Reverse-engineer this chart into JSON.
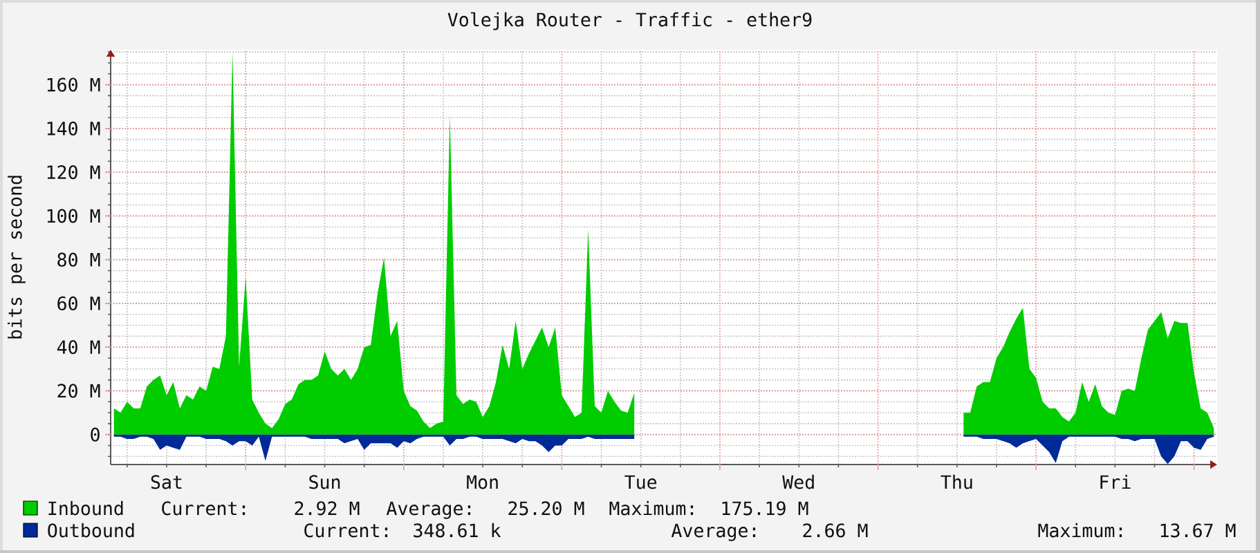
{
  "chart_data": {
    "type": "area",
    "title": "Volejka Router - Traffic - ether9",
    "ylabel": "bits per second",
    "categories": [
      null,
      null,
      null,
      null,
      null,
      null,
      null,
      null,
      "Sat",
      null,
      null,
      null,
      null,
      null,
      null,
      null,
      null,
      null,
      null,
      null,
      null,
      null,
      null,
      null,
      null,
      null,
      null,
      null,
      null,
      null,
      null,
      null,
      "Sun",
      null,
      null,
      null,
      null,
      null,
      null,
      null,
      null,
      null,
      null,
      null,
      null,
      null,
      null,
      null,
      null,
      null,
      null,
      null,
      null,
      null,
      null,
      null,
      "Mon",
      null,
      null,
      null,
      null,
      null,
      null,
      null,
      null,
      null,
      null,
      null,
      null,
      null,
      null,
      null,
      null,
      null,
      null,
      null,
      null,
      null,
      null,
      null,
      "Tue",
      null,
      null,
      null,
      null,
      null,
      null,
      null,
      null,
      null,
      null,
      null,
      null,
      null,
      null,
      null,
      null,
      null,
      null,
      null,
      null,
      null,
      null,
      null,
      "Wed",
      null,
      null,
      null,
      null,
      null,
      null,
      null,
      null,
      null,
      null,
      null,
      null,
      null,
      null,
      null,
      null,
      null,
      null,
      null,
      null,
      null,
      null,
      null,
      "Thu",
      null,
      null,
      null,
      null,
      null,
      null,
      null,
      null,
      null,
      null,
      null,
      null,
      null,
      null,
      null,
      null,
      null,
      null,
      null,
      null,
      null,
      null,
      null,
      "Fri",
      null,
      null,
      null,
      null,
      null,
      null,
      null,
      null,
      null,
      null,
      null,
      null,
      null,
      null,
      null
    ],
    "ylim": [
      -13.7,
      176
    ],
    "yticks": [
      {
        "value": -10,
        "label": null
      },
      {
        "value": -5,
        "label": null
      },
      0,
      {
        "value": 5,
        "label": null
      },
      {
        "value": 10,
        "label": null
      },
      {
        "value": 15,
        "label": null
      },
      {
        "value": 20,
        "label": "20 M"
      },
      {
        "value": 25,
        "label": null
      },
      {
        "value": 30,
        "label": null
      },
      {
        "value": 35,
        "label": null
      },
      {
        "value": 40,
        "label": "40 M"
      },
      {
        "value": 45,
        "label": null
      },
      {
        "value": 50,
        "label": null
      },
      {
        "value": 55,
        "label": null
      },
      {
        "value": 60,
        "label": "60 M"
      },
      {
        "value": 65,
        "label": null
      },
      {
        "value": 70,
        "label": null
      },
      {
        "value": 75,
        "label": null
      },
      {
        "value": 80,
        "label": "80 M"
      },
      {
        "value": 85,
        "label": null
      },
      {
        "value": 90,
        "label": null
      },
      {
        "value": 95,
        "label": null
      },
      {
        "value": 100,
        "label": "100 M"
      },
      {
        "value": 105,
        "label": null
      },
      {
        "value": 110,
        "label": null
      },
      {
        "value": 115,
        "label": null
      },
      {
        "value": 120,
        "label": "120 M"
      },
      {
        "value": 125,
        "label": null
      },
      {
        "value": 130,
        "label": null
      },
      {
        "value": 135,
        "label": null
      },
      {
        "value": 140,
        "label": "140 M"
      },
      {
        "value": 145,
        "label": null
      },
      {
        "value": 150,
        "label": null
      },
      {
        "value": 155,
        "label": null
      },
      {
        "value": 160,
        "label": "160 M"
      },
      {
        "value": 165,
        "label": null
      },
      {
        "value": 170,
        "label": null
      },
      {
        "value": 175,
        "label": null
      }
    ],
    "grid": true,
    "legend": "bottom",
    "series": [
      {
        "name": "Inbound",
        "color": "#00cc00",
        "values": [
          12,
          10,
          15,
          12,
          12,
          22,
          25,
          27,
          18,
          24,
          12,
          18,
          16,
          22,
          20,
          31,
          30,
          45,
          175,
          31,
          72,
          16,
          10,
          5,
          3,
          7,
          14,
          16,
          23,
          25,
          25,
          27,
          38,
          30,
          27,
          30,
          25,
          30,
          40,
          41,
          64,
          81,
          45,
          52,
          20,
          13,
          11,
          6,
          3,
          5,
          6,
          146,
          18,
          14,
          16,
          15,
          8,
          13,
          24,
          41,
          30,
          52,
          30,
          37,
          43,
          49,
          40,
          49,
          18,
          13,
          8,
          10,
          94,
          13,
          10,
          20,
          15,
          11,
          10,
          19,
          null,
          null,
          null,
          null,
          null,
          null,
          null,
          null,
          null,
          null,
          null,
          null,
          null,
          null,
          null,
          null,
          null,
          null,
          null,
          null,
          null,
          null,
          null,
          null,
          null,
          null,
          null,
          null,
          null,
          null,
          null,
          null,
          null,
          null,
          null,
          null,
          null,
          null,
          null,
          null,
          null,
          null,
          null,
          null,
          null,
          null,
          null,
          null,
          null,
          10,
          10,
          22,
          24,
          24,
          35,
          40,
          47,
          53,
          58,
          30,
          26,
          15,
          12,
          12,
          8,
          6,
          10,
          24,
          15,
          23,
          13,
          10,
          9,
          20,
          21,
          20,
          35,
          48,
          52,
          56,
          44,
          52,
          51,
          51,
          28,
          12,
          10,
          3
        ]
      },
      {
        "name": "Outbound",
        "color": "#002a97",
        "values": [
          -1,
          -1,
          -2,
          -2,
          -1,
          -1,
          -2,
          -7,
          -5,
          -6,
          -7,
          -1,
          -1,
          -1,
          -2,
          -2,
          -2,
          -3,
          -5,
          -3,
          -3,
          -5,
          -1,
          -12,
          -1,
          -1,
          -1,
          -1,
          -1,
          -1,
          -2,
          -2,
          -2,
          -2,
          -2,
          -4,
          -3,
          -2,
          -7,
          -4,
          -4,
          -4,
          -4,
          -6,
          -3,
          -4,
          -2,
          -1,
          -1,
          -1,
          -1,
          -5,
          -2,
          -2,
          -1,
          -1,
          -2,
          -2,
          -2,
          -2,
          -3,
          -4,
          -2,
          -3,
          -3,
          -5,
          -8,
          -5,
          -5,
          -2,
          -2,
          -2,
          -1,
          -2,
          -2,
          -2,
          -2,
          -2,
          -2,
          -2,
          null,
          null,
          null,
          null,
          null,
          null,
          null,
          null,
          null,
          null,
          null,
          null,
          null,
          null,
          null,
          null,
          null,
          null,
          null,
          null,
          null,
          null,
          null,
          null,
          null,
          null,
          null,
          null,
          null,
          null,
          null,
          null,
          null,
          null,
          null,
          null,
          null,
          null,
          null,
          null,
          null,
          null,
          null,
          null,
          null,
          null,
          null,
          null,
          null,
          -1,
          -1,
          -1,
          -2,
          -2,
          -2,
          -3,
          -4,
          -6,
          -4,
          -3,
          -2,
          -5,
          -8,
          -13,
          -3,
          -1,
          -1,
          -1,
          -1,
          -1,
          -1,
          -1,
          -1,
          -2,
          -2,
          -3,
          -2,
          -2,
          -2,
          -10,
          -13.5,
          -10,
          -3,
          -3,
          -6,
          -7,
          -2,
          -1
        ]
      }
    ],
    "annotations": [
      "Current:",
      "2.92 M",
      "Average:",
      "25.20 M",
      "Maximum:",
      "175.19 M",
      "Current:",
      "348.61 k",
      "Average:",
      "2.66 M",
      "Maximum:",
      "13.67 M"
    ]
  }
}
